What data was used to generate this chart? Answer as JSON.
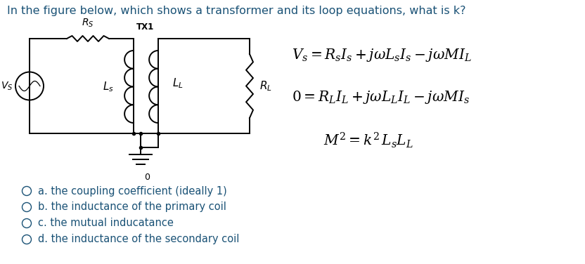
{
  "title": "In the figure below, which shows a transformer and its loop equations, what is k?",
  "title_color": "#1a5276",
  "title_fontsize": 11.5,
  "eq1": "$V_s = R_sI_s + j\\omega L_sI_s - j\\omega MI_L$",
  "eq2": "$0 = R_LI_L + j\\omega L_LI_L - j\\omega MI_s$",
  "eq3": "$M^2=k^2\\, L_sL_L$",
  "options": [
    "a. the coupling coefficient (ideally 1)",
    "b. the inductance of the primary coil",
    "c. the mutual inducatance",
    "d. the inductance of the secondary coil"
  ],
  "option_color": "#1a5276",
  "bg_color": "#ffffff",
  "lw": 1.4
}
